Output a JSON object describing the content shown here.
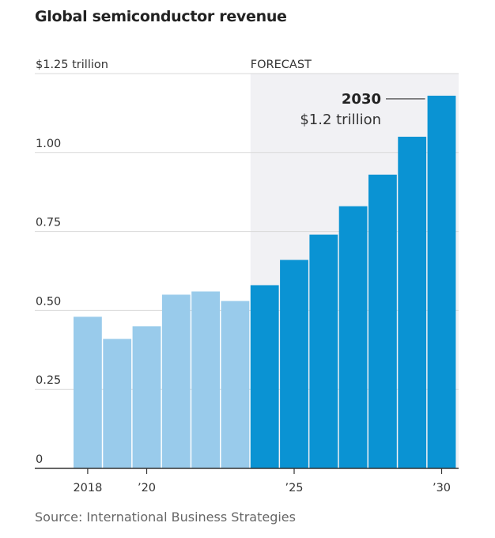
{
  "chart_data": {
    "type": "bar",
    "title": "Global semiconductor revenue",
    "ylabel": "",
    "xlabel": "",
    "unit_label": "$1.25 trillion",
    "ylim": [
      0,
      1.25
    ],
    "y_ticks": [
      {
        "value": 1.25,
        "label": "$1.25 trillion"
      },
      {
        "value": 1.0,
        "label": "1.00"
      },
      {
        "value": 0.75,
        "label": "0.75"
      },
      {
        "value": 0.5,
        "label": "0.50"
      },
      {
        "value": 0.25,
        "label": "0.25"
      },
      {
        "value": 0,
        "label": "0"
      }
    ],
    "categories": [
      "2018",
      "2019",
      "2020",
      "2021",
      "2022",
      "2023",
      "2024",
      "2025",
      "2026",
      "2027",
      "2028",
      "2029",
      "2030"
    ],
    "values": [
      0.48,
      0.41,
      0.45,
      0.55,
      0.56,
      0.53,
      0.58,
      0.66,
      0.74,
      0.83,
      0.93,
      1.05,
      1.18
    ],
    "x_tick_labels": [
      {
        "category": "2018",
        "label": "2018"
      },
      {
        "category": "2020",
        "label": "’20"
      },
      {
        "category": "2025",
        "label": "’25"
      },
      {
        "category": "2030",
        "label": "’30"
      }
    ],
    "forecast": {
      "label": "FORECAST",
      "start_category": "2024"
    },
    "annotation": {
      "category": "2030",
      "year": "2030",
      "value_text": "$1.2 trillion"
    },
    "colors": {
      "actual": "#99cbeb",
      "forecast": "#0a93d3",
      "forecast_band": "#f1f1f4",
      "gridline": "#d9d9d9",
      "axis": "#333333"
    },
    "grid": true
  },
  "source": "Source: International Business Strategies"
}
